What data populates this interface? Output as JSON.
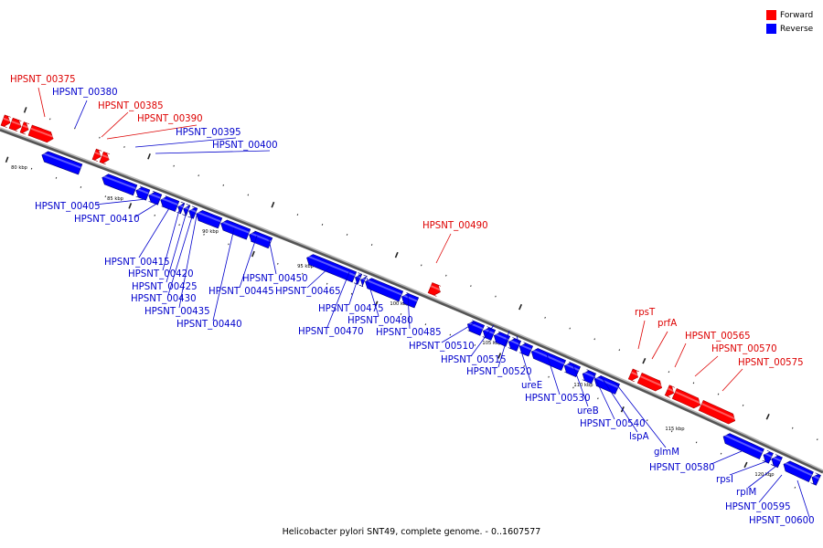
{
  "caption": "Helicobacter pylori SNT49, complete genome. - 0..1607577",
  "legend": [
    {
      "label": "Forward",
      "color": "#ff0000"
    },
    {
      "label": "Reverse",
      "color": "#0000ff"
    }
  ],
  "colors": {
    "forward": "#ff0000",
    "reverse": "#0000ff",
    "backbone": "#777777"
  },
  "kbp_marks": [
    "80 kbp",
    "85 kbp",
    "90 kbp",
    "95 kbp",
    "100 kbp",
    "105 kbp",
    "110 kbp",
    "115 kbp",
    "120 kbp"
  ],
  "genes": [
    {
      "label": "HPSNT_00375",
      "strand": "forward"
    },
    {
      "label": "HPSNT_00380",
      "strand": "reverse"
    },
    {
      "label": "HPSNT_00385",
      "strand": "forward"
    },
    {
      "label": "HPSNT_00390",
      "strand": "forward"
    },
    {
      "label": "HPSNT_00395",
      "strand": "reverse"
    },
    {
      "label": "HPSNT_00400",
      "strand": "reverse"
    },
    {
      "label": "HPSNT_00405",
      "strand": "reverse"
    },
    {
      "label": "HPSNT_00410",
      "strand": "reverse"
    },
    {
      "label": "HPSNT_00415",
      "strand": "reverse"
    },
    {
      "label": "HPSNT_00420",
      "strand": "reverse"
    },
    {
      "label": "HPSNT_00425",
      "strand": "reverse"
    },
    {
      "label": "HPSNT_00430",
      "strand": "reverse"
    },
    {
      "label": "HPSNT_00435",
      "strand": "reverse"
    },
    {
      "label": "HPSNT_00440",
      "strand": "reverse"
    },
    {
      "label": "HPSNT_00445",
      "strand": "reverse"
    },
    {
      "label": "HPSNT_00450",
      "strand": "reverse"
    },
    {
      "label": "HPSNT_00465",
      "strand": "reverse"
    },
    {
      "label": "HPSNT_00470",
      "strand": "reverse"
    },
    {
      "label": "HPSNT_00475",
      "strand": "reverse"
    },
    {
      "label": "HPSNT_00480",
      "strand": "reverse"
    },
    {
      "label": "HPSNT_00485",
      "strand": "reverse"
    },
    {
      "label": "HPSNT_00490",
      "strand": "forward"
    },
    {
      "label": "HPSNT_00510",
      "strand": "reverse"
    },
    {
      "label": "HPSNT_00515",
      "strand": "reverse"
    },
    {
      "label": "HPSNT_00520",
      "strand": "reverse"
    },
    {
      "label": "ureE",
      "strand": "reverse"
    },
    {
      "label": "HPSNT_00530",
      "strand": "reverse"
    },
    {
      "label": "ureB",
      "strand": "reverse"
    },
    {
      "label": "HPSNT_00540",
      "strand": "reverse"
    },
    {
      "label": "lspA",
      "strand": "reverse"
    },
    {
      "label": "glmM",
      "strand": "reverse"
    },
    {
      "label": "rpsT",
      "strand": "forward"
    },
    {
      "label": "prfA",
      "strand": "forward"
    },
    {
      "label": "HPSNT_00565",
      "strand": "forward"
    },
    {
      "label": "HPSNT_00570",
      "strand": "forward"
    },
    {
      "label": "HPSNT_00575",
      "strand": "forward"
    },
    {
      "label": "HPSNT_00580",
      "strand": "reverse"
    },
    {
      "label": "rpsI",
      "strand": "reverse"
    },
    {
      "label": "rplM",
      "strand": "reverse"
    },
    {
      "label": "HPSNT_00595",
      "strand": "reverse"
    },
    {
      "label": "HPSNT_00600",
      "strand": "reverse"
    }
  ]
}
